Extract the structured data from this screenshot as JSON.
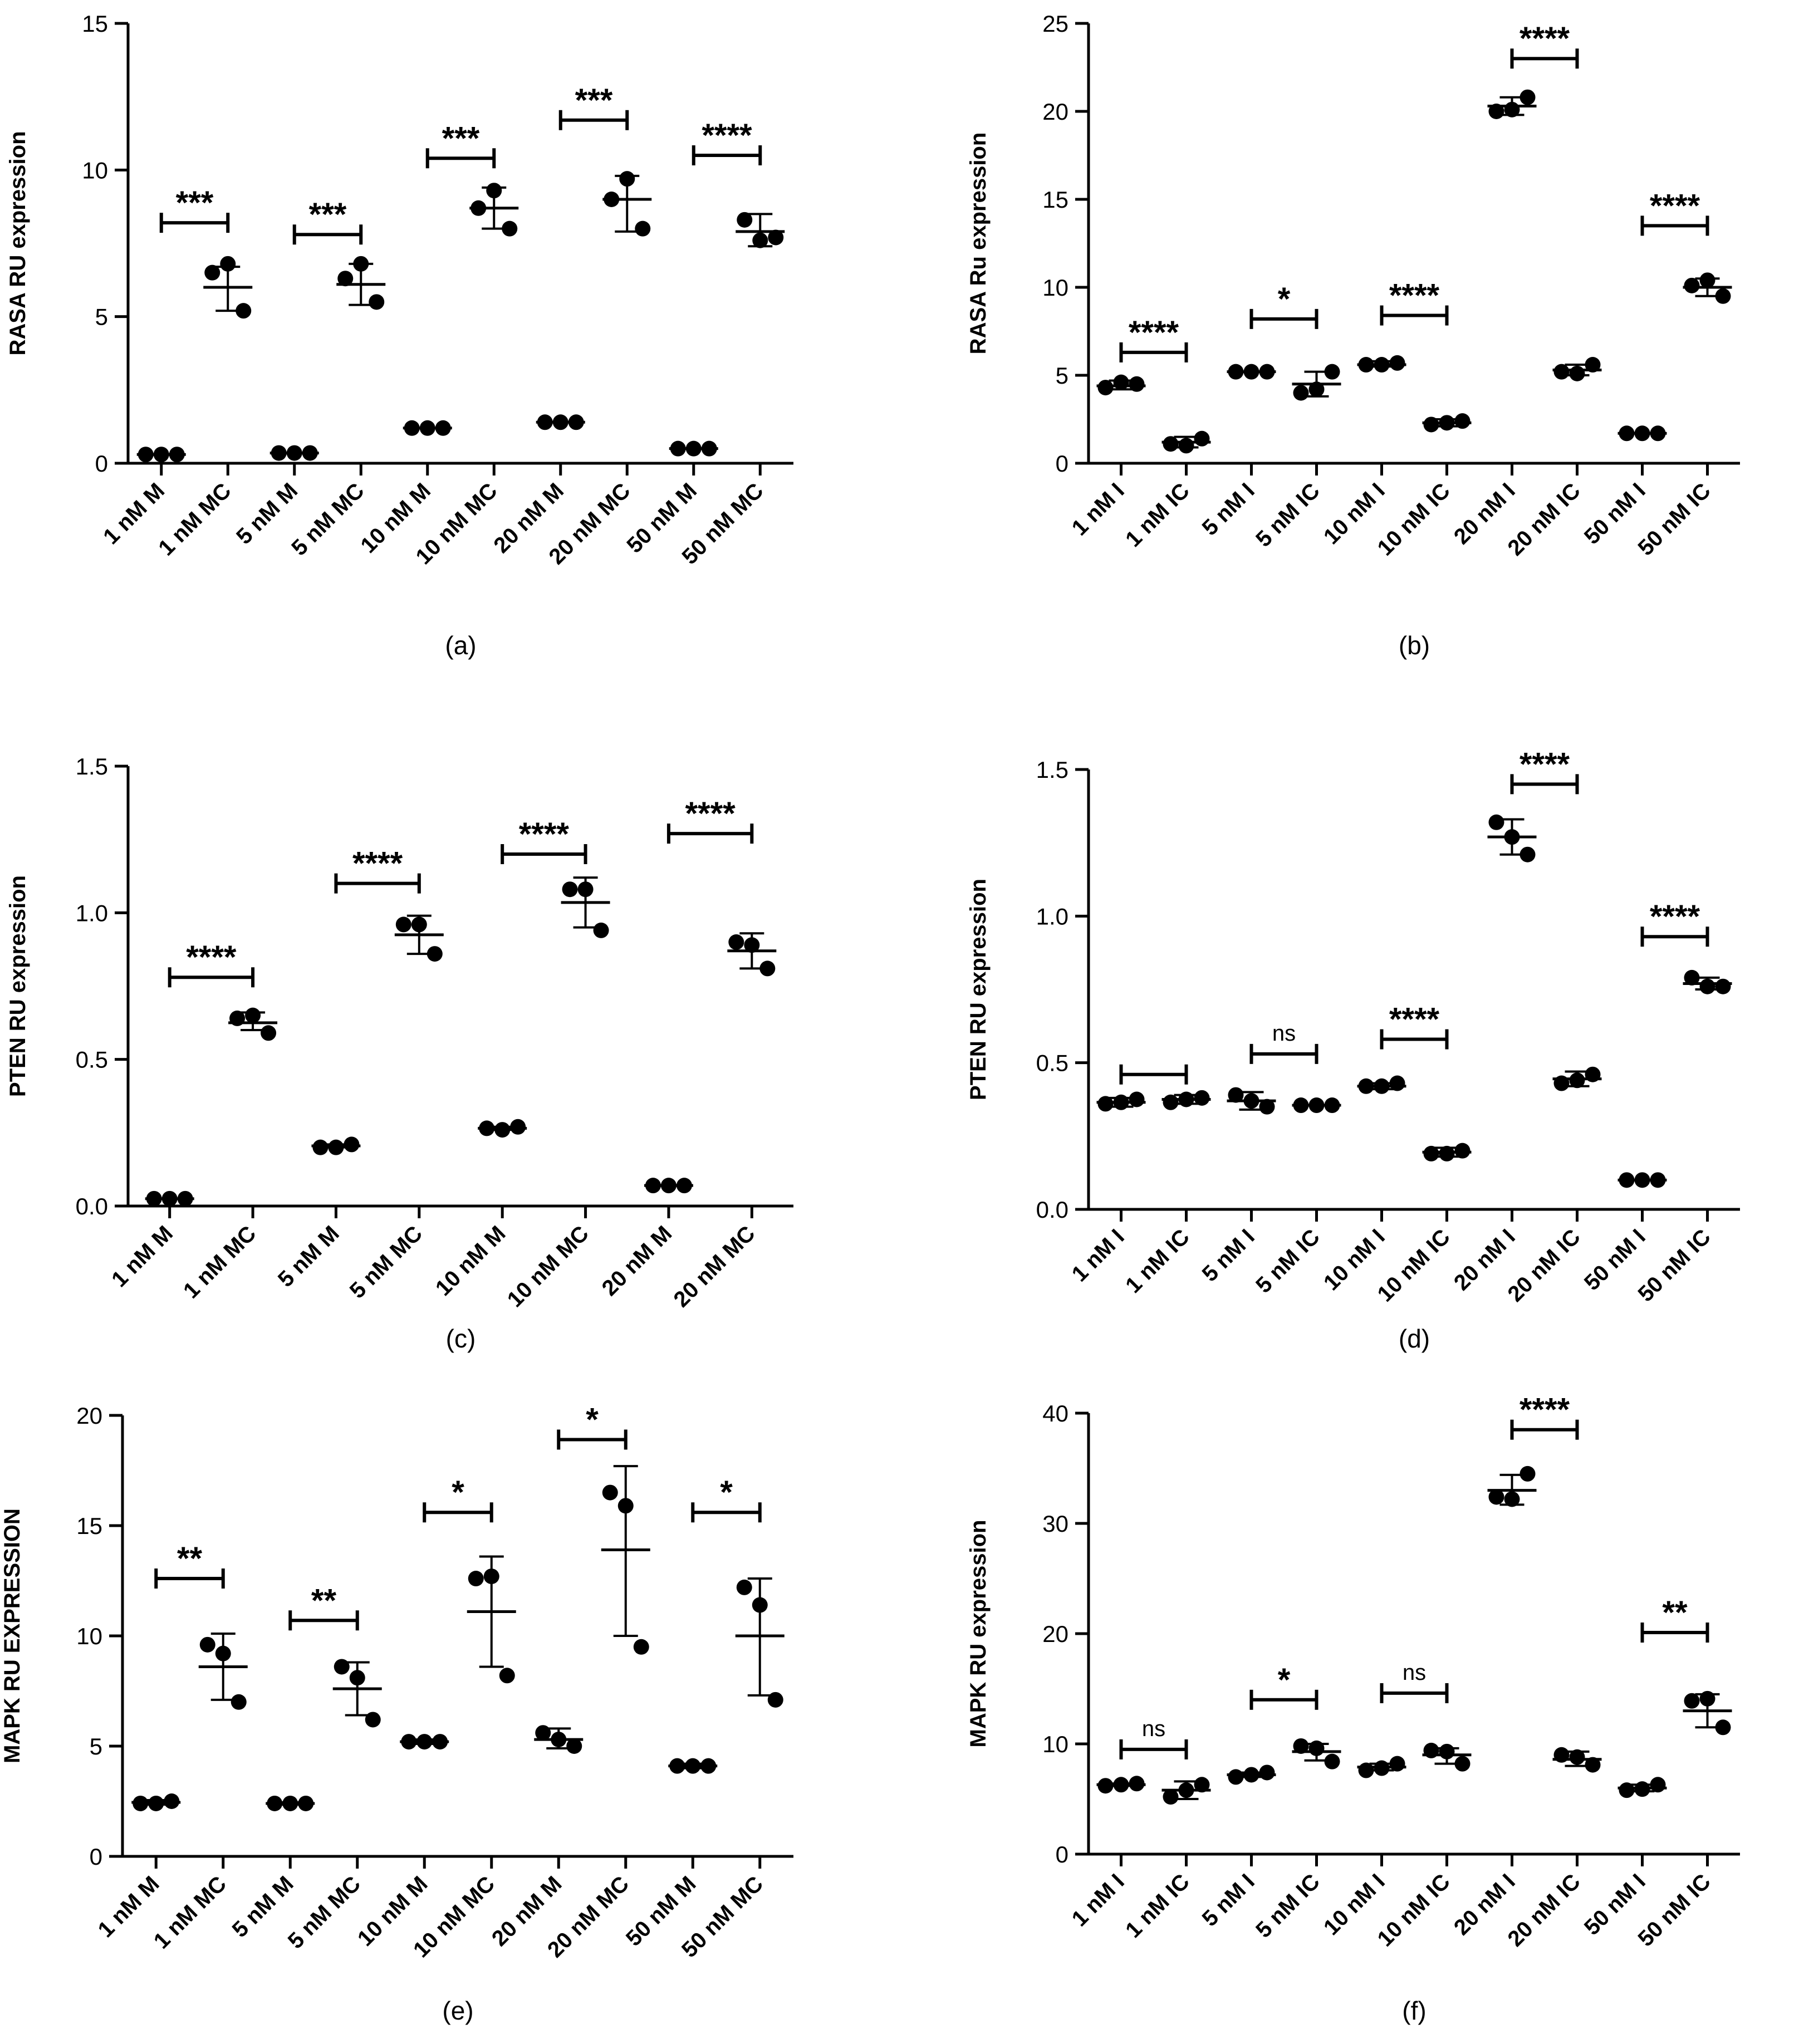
{
  "colors": {
    "ink": "#000000",
    "background": "#ffffff"
  },
  "chart_data": [
    {
      "id": "a",
      "panel_label": "(a)",
      "type": "scatter",
      "ylabel": "RASA RU expression",
      "ylim": [
        0,
        15
      ],
      "yticks": [
        0,
        5,
        10,
        15
      ],
      "ytick_labels": [
        "0",
        "5",
        "10",
        "15"
      ],
      "categories": [
        "1 nM M",
        "1 nM MC",
        "5 nM M",
        "5 nM MC",
        "10 nM M",
        "10 nM MC",
        "20 nM M",
        "20 nM MC",
        "50 nM M",
        "50 nM MC"
      ],
      "points": [
        [
          0.3,
          0.3,
          0.3
        ],
        [
          6.5,
          5.2,
          6.8
        ],
        [
          0.35,
          0.35,
          0.35
        ],
        [
          6.3,
          5.5,
          6.8
        ],
        [
          1.2,
          1.2,
          1.2
        ],
        [
          8.7,
          8.0,
          9.3
        ],
        [
          1.4,
          1.4,
          1.4
        ],
        [
          9.0,
          8.0,
          9.7
        ],
        [
          0.5,
          0.5,
          0.5
        ],
        [
          8.3,
          7.7,
          7.6
        ]
      ],
      "mean": [
        0.3,
        6.0,
        0.35,
        6.1,
        1.2,
        8.7,
        1.4,
        9.0,
        0.5,
        7.9
      ],
      "sd_low": [
        0.3,
        5.2,
        0.35,
        5.4,
        1.2,
        8.0,
        1.4,
        7.9,
        0.5,
        7.4
      ],
      "sd_high": [
        0.3,
        6.7,
        0.35,
        6.8,
        1.2,
        9.4,
        1.4,
        9.8,
        0.5,
        8.5
      ],
      "comparisons": [
        {
          "from": "1 nM M",
          "to": "1 nM MC",
          "y": 8.2,
          "label": "***"
        },
        {
          "from": "5 nM M",
          "to": "5 nM MC",
          "y": 7.8,
          "label": "***"
        },
        {
          "from": "10 nM M",
          "to": "10 nM MC",
          "y": 10.4,
          "label": "***"
        },
        {
          "from": "20 nM M",
          "to": "20 nM MC",
          "y": 11.7,
          "label": "***"
        },
        {
          "from": "50 nM M",
          "to": "50 nM MC",
          "y": 10.5,
          "label": "****"
        }
      ]
    },
    {
      "id": "b",
      "panel_label": "(b)",
      "type": "scatter",
      "ylabel": "RASA Ru expression",
      "ylim": [
        0,
        25
      ],
      "yticks": [
        0,
        5,
        10,
        15,
        20,
        25
      ],
      "ytick_labels": [
        "0",
        "5",
        "10",
        "15",
        "20",
        "25"
      ],
      "categories": [
        "1 nM I",
        "1 nM IC",
        "5 nM I",
        "5 nM IC",
        "10 nM I",
        "10 nM IC",
        "20 nM I",
        "20 nM IC",
        "50 nM I",
        "50 nM IC"
      ],
      "points": [
        [
          4.3,
          4.5,
          4.6
        ],
        [
          1.1,
          1.4,
          1.0
        ],
        [
          5.2,
          5.2,
          5.2
        ],
        [
          4.0,
          5.2,
          4.2
        ],
        [
          5.6,
          5.7,
          5.6
        ],
        [
          2.2,
          2.4,
          2.3
        ],
        [
          20.0,
          20.8,
          20.1
        ],
        [
          5.2,
          5.6,
          5.1
        ],
        [
          1.7,
          1.7,
          1.7
        ],
        [
          10.1,
          9.5,
          10.4
        ]
      ],
      "mean": [
        4.4,
        1.2,
        5.2,
        4.5,
        5.6,
        2.3,
        20.3,
        5.3,
        1.7,
        10.0
      ],
      "sd_low": [
        4.2,
        0.9,
        5.2,
        3.8,
        5.5,
        2.1,
        19.8,
        5.0,
        1.7,
        9.5
      ],
      "sd_high": [
        4.7,
        1.5,
        5.2,
        5.2,
        5.8,
        2.5,
        20.8,
        5.6,
        1.7,
        10.5
      ],
      "comparisons": [
        {
          "from": "1 nM I",
          "to": "1 nM IC",
          "y": 6.3,
          "label": "****"
        },
        {
          "from": "5 nM I",
          "to": "5 nM IC",
          "y": 8.2,
          "label": "*"
        },
        {
          "from": "10 nM I",
          "to": "10 nM IC",
          "y": 8.4,
          "label": "****"
        },
        {
          "from": "20 nM I",
          "to": "20 nM IC",
          "y": 23.0,
          "label": "****"
        },
        {
          "from": "50 nM I",
          "to": "50 nM IC",
          "y": 13.5,
          "label": "****"
        }
      ]
    },
    {
      "id": "c",
      "panel_label": "(c)",
      "type": "scatter",
      "ylabel": "PTEN RU expression",
      "ylim": [
        0,
        1.5
      ],
      "yticks": [
        0,
        0.5,
        1.0,
        1.5
      ],
      "ytick_labels": [
        "0.0",
        "0.5",
        "1.0",
        "1.5"
      ],
      "categories": [
        "1 nM M",
        "1 nM MC",
        "5 nM M",
        "5 nM MC",
        "10 nM M",
        "10 nM MC",
        "20 nM M",
        "20 nM MC"
      ],
      "points": [
        [
          0.025,
          0.025,
          0.025
        ],
        [
          0.64,
          0.59,
          0.65
        ],
        [
          0.2,
          0.21,
          0.2
        ],
        [
          0.96,
          0.86,
          0.96
        ],
        [
          0.265,
          0.27,
          0.26
        ],
        [
          1.08,
          0.94,
          1.08
        ],
        [
          0.07,
          0.07,
          0.07
        ],
        [
          0.9,
          0.81,
          0.89
        ]
      ],
      "mean": [
        0.025,
        0.625,
        0.205,
        0.925,
        0.265,
        1.035,
        0.07,
        0.87
      ],
      "sd_low": [
        0.025,
        0.6,
        0.2,
        0.86,
        0.26,
        0.95,
        0.07,
        0.81
      ],
      "sd_high": [
        0.025,
        0.66,
        0.21,
        0.99,
        0.27,
        1.12,
        0.07,
        0.93
      ],
      "comparisons": [
        {
          "from": "1 nM M",
          "to": "1 nM MC",
          "y": 0.78,
          "label": "****"
        },
        {
          "from": "5 nM M",
          "to": "5 nM MC",
          "y": 1.1,
          "label": "****"
        },
        {
          "from": "10 nM M",
          "to": "10 nM MC",
          "y": 1.2,
          "label": "****"
        },
        {
          "from": "20 nM M",
          "to": "20 nM MC",
          "y": 1.27,
          "label": "****"
        }
      ]
    },
    {
      "id": "d",
      "panel_label": "(d)",
      "type": "scatter",
      "ylabel": "PTEN RU expression",
      "ylim": [
        0,
        1.5
      ],
      "yticks": [
        0,
        0.5,
        1.0,
        1.5
      ],
      "ytick_labels": [
        "0.0",
        "0.5",
        "1.0",
        "1.5"
      ],
      "categories": [
        "1 nM I",
        "1 nM IC",
        "5 nM I",
        "5 nM IC",
        "10 nM I",
        "10 nM IC",
        "20 nM I",
        "20 nM IC",
        "50 nM I",
        "50 nM IC"
      ],
      "points": [
        [
          0.36,
          0.375,
          0.365
        ],
        [
          0.365,
          0.38,
          0.375
        ],
        [
          0.39,
          0.35,
          0.37
        ],
        [
          0.355,
          0.355,
          0.355
        ],
        [
          0.42,
          0.43,
          0.42
        ],
        [
          0.19,
          0.2,
          0.19
        ],
        [
          1.32,
          1.21,
          1.27
        ],
        [
          0.43,
          0.46,
          0.44
        ],
        [
          0.1,
          0.1,
          0.1
        ],
        [
          0.79,
          0.76,
          0.76
        ]
      ],
      "mean": [
        0.365,
        0.375,
        0.37,
        0.355,
        0.42,
        0.195,
        1.27,
        0.445,
        0.1,
        0.77
      ],
      "sd_low": [
        0.35,
        0.36,
        0.34,
        0.355,
        0.41,
        0.18,
        1.21,
        0.42,
        0.1,
        0.75
      ],
      "sd_high": [
        0.38,
        0.39,
        0.4,
        0.355,
        0.43,
        0.21,
        1.33,
        0.47,
        0.1,
        0.79
      ],
      "comparisons": [
        {
          "from": "1 nM I",
          "to": "1 nM IC",
          "y": 0.46,
          "label": ""
        },
        {
          "from": "5 nM I",
          "to": "5 nM IC",
          "y": 0.53,
          "label": "ns"
        },
        {
          "from": "10 nM I",
          "to": "10 nM IC",
          "y": 0.58,
          "label": "****"
        },
        {
          "from": "20 nM I",
          "to": "20 nM IC",
          "y": 1.45,
          "label": "****"
        },
        {
          "from": "50 nM I",
          "to": "50 nM IC",
          "y": 0.93,
          "label": "****"
        }
      ]
    },
    {
      "id": "e",
      "panel_label": "(e)",
      "type": "scatter",
      "ylabel": "MAPK RU EXPRESSION",
      "ylim": [
        0,
        20
      ],
      "yticks": [
        0,
        5,
        10,
        15,
        20
      ],
      "ytick_labels": [
        "0",
        "5",
        "10",
        "15",
        "20"
      ],
      "categories": [
        "1 nM M",
        "1 nM MC",
        "5 nM M",
        "5 nM MC",
        "10 nM M",
        "10 nM MC",
        "20 nM M",
        "20 nM MC",
        "50 nM M",
        "50 nM MC"
      ],
      "points": [
        [
          2.4,
          2.5,
          2.4
        ],
        [
          9.6,
          7.0,
          9.2
        ],
        [
          2.4,
          2.4,
          2.4
        ],
        [
          8.6,
          6.2,
          8.1
        ],
        [
          5.2,
          5.2,
          5.2
        ],
        [
          12.6,
          8.2,
          12.7
        ],
        [
          5.6,
          5.0,
          5.3
        ],
        [
          16.5,
          9.5,
          15.9
        ],
        [
          4.1,
          4.1,
          4.1
        ],
        [
          12.2,
          7.1,
          11.4
        ]
      ],
      "mean": [
        2.45,
        8.6,
        2.4,
        7.6,
        5.2,
        11.1,
        5.3,
        13.9,
        4.1,
        10.0
      ],
      "sd_low": [
        2.35,
        7.1,
        2.35,
        6.4,
        5.1,
        8.6,
        4.9,
        10.0,
        4.0,
        7.3
      ],
      "sd_high": [
        2.55,
        10.1,
        2.45,
        8.8,
        5.3,
        13.6,
        5.8,
        17.7,
        4.2,
        12.6
      ],
      "comparisons": [
        {
          "from": "1 nM M",
          "to": "1 nM MC",
          "y": 12.6,
          "label": "**"
        },
        {
          "from": "5 nM M",
          "to": "5 nM MC",
          "y": 10.7,
          "label": "**"
        },
        {
          "from": "10 nM M",
          "to": "10 nM MC",
          "y": 15.6,
          "label": "*"
        },
        {
          "from": "20 nM M",
          "to": "20 nM MC",
          "y": 18.9,
          "label": "*"
        },
        {
          "from": "50 nM M",
          "to": "50 nM MC",
          "y": 15.6,
          "label": "*"
        }
      ]
    },
    {
      "id": "f",
      "panel_label": "(f)",
      "type": "scatter",
      "ylabel": "MAPK RU expression",
      "ylim": [
        0,
        40
      ],
      "yticks": [
        0,
        10,
        20,
        30,
        40
      ],
      "ytick_labels": [
        "0",
        "10",
        "20",
        "30",
        "40"
      ],
      "categories": [
        "1 nM I",
        "1 nM IC",
        "5 nM I",
        "5 nM IC",
        "10 nM I",
        "10 nM IC",
        "20 nM I",
        "20 nM IC",
        "50 nM I",
        "50 nM IC"
      ],
      "points": [
        [
          6.2,
          6.4,
          6.3
        ],
        [
          5.2,
          6.3,
          5.8
        ],
        [
          7.0,
          7.4,
          7.2
        ],
        [
          9.8,
          8.4,
          9.6
        ],
        [
          7.6,
          8.2,
          7.8
        ],
        [
          9.4,
          8.2,
          9.3
        ],
        [
          32.4,
          34.5,
          32.2
        ],
        [
          9.0,
          8.1,
          8.8
        ],
        [
          5.8,
          6.3,
          5.9
        ],
        [
          13.9,
          11.5,
          14.1
        ]
      ],
      "mean": [
        6.3,
        5.8,
        7.2,
        9.3,
        7.9,
        9.0,
        33.0,
        8.6,
        6.0,
        13.0
      ],
      "sd_low": [
        6.2,
        5.0,
        7.0,
        8.5,
        7.6,
        8.2,
        31.7,
        8.0,
        5.7,
        11.5
      ],
      "sd_high": [
        6.4,
        6.6,
        7.4,
        10.0,
        8.2,
        9.6,
        34.4,
        9.3,
        6.3,
        14.5
      ],
      "comparisons": [
        {
          "from": "1 nM I",
          "to": "1 nM IC",
          "y": 9.5,
          "label": "ns"
        },
        {
          "from": "5 nM I",
          "to": "5 nM IC",
          "y": 14.0,
          "label": "*"
        },
        {
          "from": "10 nM I",
          "to": "10 nM IC",
          "y": 14.6,
          "label": "ns"
        },
        {
          "from": "20 nM I",
          "to": "20 nM IC",
          "y": 38.5,
          "label": "****"
        },
        {
          "from": "50 nM I",
          "to": "50 nM IC",
          "y": 20.1,
          "label": "**"
        }
      ]
    }
  ]
}
